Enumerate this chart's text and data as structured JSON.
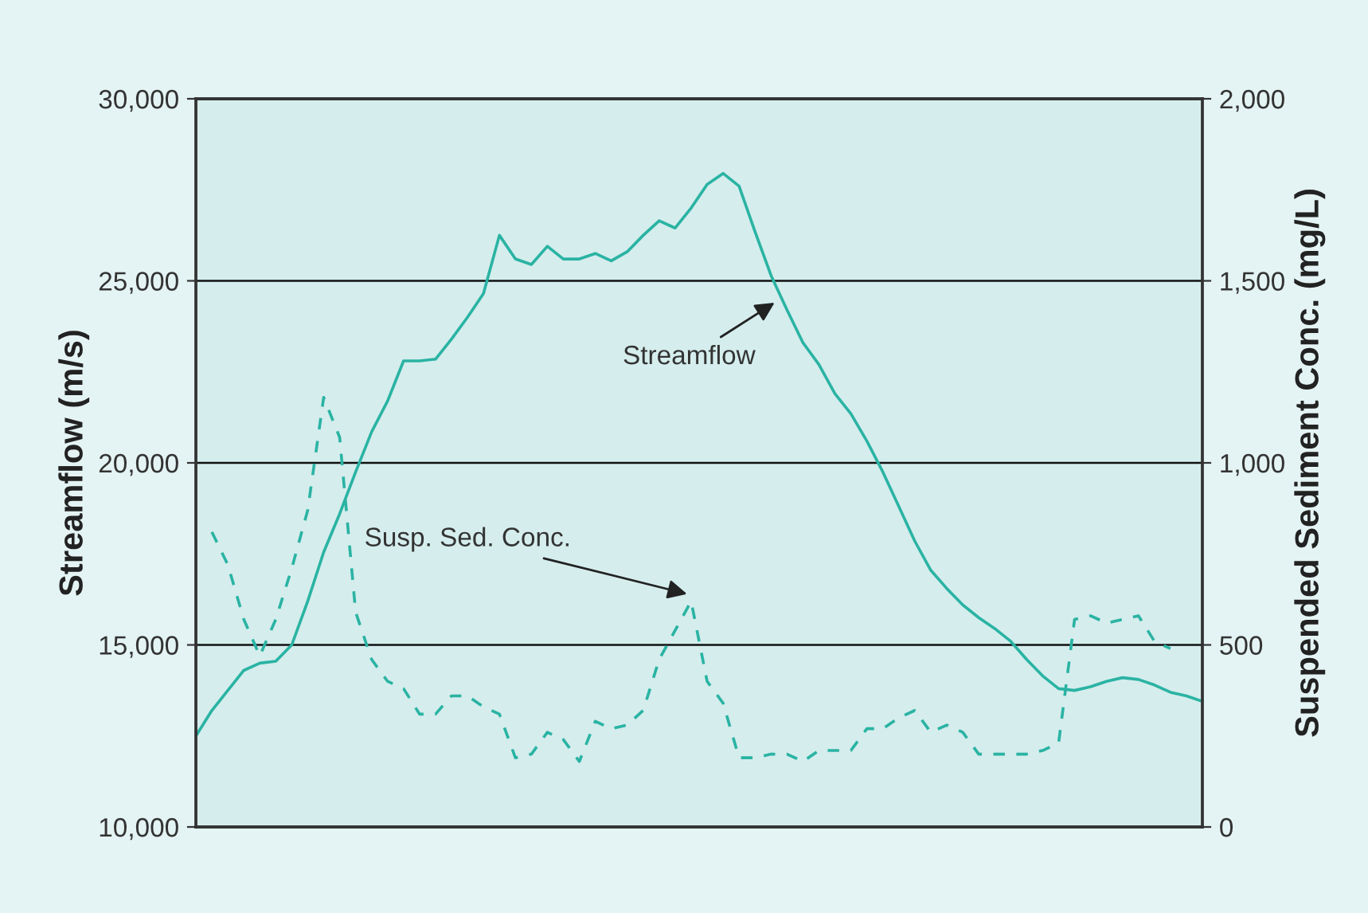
{
  "chart_data": {
    "type": "line",
    "categories": [
      null,
      null,
      null,
      null,
      null,
      null,
      null,
      null,
      null,
      null,
      null,
      null,
      null,
      null,
      null,
      null,
      null,
      null,
      null,
      null,
      null,
      null,
      null,
      null,
      null,
      null,
      null,
      null,
      null,
      null,
      null,
      null,
      null,
      null,
      null,
      null,
      null,
      null,
      null,
      null,
      null,
      null,
      null,
      null,
      null,
      null,
      null,
      null,
      null,
      null,
      null,
      null,
      null,
      null,
      null,
      null,
      null,
      null,
      null,
      null,
      null,
      null,
      null,
      null
    ],
    "ylabel": "Streamflow (m/s)",
    "y2label": "Suspended Sediment Conc. (mg/L)",
    "ylim": [
      10000,
      30000
    ],
    "yticks": [
      {
        "value": 10000,
        "label": "10,000"
      },
      {
        "value": 15000,
        "label": "15,000"
      },
      {
        "value": 20000,
        "label": "20,000"
      },
      {
        "value": 25000,
        "label": "25,000"
      },
      {
        "value": 30000,
        "label": "30,000"
      }
    ],
    "y2lim": [
      0,
      2000
    ],
    "y2ticks": [
      0,
      500,
      {
        "value": 1000,
        "label": "1,000"
      },
      {
        "value": 1500,
        "label": "1,500"
      },
      {
        "value": 2000,
        "label": "2,000"
      }
    ],
    "grid": "y",
    "legend": false,
    "marker": "none",
    "tick_labels": "y",
    "series": [
      {
        "color": "#2ab3a3",
        "line_style": "solid",
        "values": [
          12500,
          13200,
          13750,
          14300,
          14500,
          14550,
          15000,
          16200,
          17550,
          18600,
          19750,
          20850,
          21700,
          22800,
          22800,
          22850,
          23400,
          24000,
          24650,
          26250,
          25600,
          25450,
          25950,
          25600,
          25600,
          25750,
          25550,
          25800,
          26250,
          26650,
          26450,
          27000,
          27650,
          27950,
          27600,
          26350,
          25150,
          24200,
          23300,
          22700,
          21900,
          21350,
          20600,
          19750,
          18800,
          17850,
          17050,
          16550,
          16100,
          15750,
          15450,
          15100,
          14600,
          14150,
          13800,
          13750,
          13850,
          14000,
          14100,
          14050,
          13900,
          13700,
          13600,
          13450
        ]
      },
      {
        "color": "#2ab3a3",
        "line_style": "dashed",
        "axis": "y2",
        "values": [
          null,
          810,
          720,
          570,
          470,
          570,
          710,
          870,
          1180,
          1070,
          590,
          460,
          400,
          380,
          310,
          310,
          360,
          360,
          330,
          310,
          190,
          200,
          260,
          240,
          180,
          290,
          270,
          280,
          320,
          460,
          540,
          620,
          400,
          340,
          190,
          190,
          200,
          200,
          180,
          210,
          210,
          210,
          270,
          270,
          300,
          320,
          260,
          280,
          260,
          200,
          200,
          200,
          200,
          210,
          230,
          570,
          580,
          560,
          570,
          580,
          510,
          490,
          null,
          null
        ]
      }
    ],
    "annotations": [
      "Streamflow",
      "Susp. Sed. Conc."
    ]
  }
}
